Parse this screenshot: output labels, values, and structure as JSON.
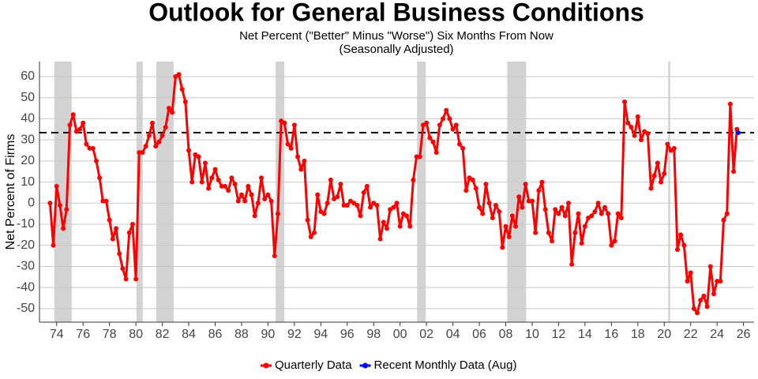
{
  "chart_data": {
    "type": "line",
    "title": "Outlook for General Business Conditions",
    "subtitle": [
      "Net Percent (\"Better\" Minus \"Worse\") Six Months From Now",
      "(Seasonally Adjusted)"
    ],
    "y_label": "Net Percent of Firms",
    "xlim": [
      1972.7,
      2026.8
    ],
    "ylim": [
      -56.4,
      67.1
    ],
    "xticks": [
      {
        "value": 1974,
        "label": "74"
      },
      {
        "value": 1976,
        "label": "76"
      },
      {
        "value": 1978,
        "label": "78"
      },
      {
        "value": 1980,
        "label": "80"
      },
      {
        "value": 1982,
        "label": "82"
      },
      {
        "value": 1984,
        "label": "84"
      },
      {
        "value": 1986,
        "label": "86"
      },
      {
        "value": 1988,
        "label": "88"
      },
      {
        "value": 1990,
        "label": "90"
      },
      {
        "value": 1992,
        "label": "92"
      },
      {
        "value": 1994,
        "label": "94"
      },
      {
        "value": 1996,
        "label": "96"
      },
      {
        "value": 1998,
        "label": "98"
      },
      {
        "value": 2000,
        "label": "00"
      },
      {
        "value": 2002,
        "label": "02"
      },
      {
        "value": 2004,
        "label": "04"
      },
      {
        "value": 2006,
        "label": "06"
      },
      {
        "value": 2008,
        "label": "08"
      },
      {
        "value": 2010,
        "label": "10"
      },
      {
        "value": 2012,
        "label": "12"
      },
      {
        "value": 2014,
        "label": "14"
      },
      {
        "value": 2016,
        "label": "16"
      },
      {
        "value": 2018,
        "label": "18"
      },
      {
        "value": 2020,
        "label": "20"
      },
      {
        "value": 2022,
        "label": "22"
      },
      {
        "value": 2024,
        "label": "24"
      },
      {
        "value": 2026,
        "label": "26"
      }
    ],
    "yticks": [
      -50,
      -40,
      -30,
      -20,
      -10,
      0,
      10,
      20,
      30,
      40,
      50,
      60
    ],
    "grid": true,
    "legend": "bottom",
    "reference_line": 33.4,
    "shaded_periods": [
      [
        1973.82,
        1975.14
      ],
      [
        1980.04,
        1980.52
      ],
      [
        1981.54,
        1982.86
      ],
      [
        1990.58,
        1991.24
      ],
      [
        2001.29,
        2001.95
      ],
      [
        2008.11,
        2009.55
      ],
      [
        2020.3,
        2020.45
      ]
    ],
    "shade_color": "#d3d3d3",
    "series": [
      {
        "name": "Quarterly Data",
        "color": "#ff0000",
        "x": [
          1973.5,
          1973.75,
          1974,
          1974.25,
          1974.5,
          1974.75,
          1975,
          1975.25,
          1975.5,
          1975.75,
          1976,
          1976.25,
          1976.5,
          1976.75,
          1977,
          1977.25,
          1977.5,
          1977.75,
          1978,
          1978.25,
          1978.5,
          1978.75,
          1979,
          1979.25,
          1979.5,
          1979.75,
          1980,
          1980.25,
          1980.5,
          1980.75,
          1981,
          1981.25,
          1981.5,
          1981.75,
          1982,
          1982.25,
          1982.5,
          1982.75,
          1983,
          1983.25,
          1983.5,
          1983.75,
          1984,
          1984.25,
          1984.5,
          1984.75,
          1985,
          1985.25,
          1985.5,
          1985.75,
          1986,
          1986.25,
          1986.5,
          1986.75,
          1987,
          1987.25,
          1987.5,
          1987.75,
          1988,
          1988.25,
          1988.5,
          1988.75,
          1989,
          1989.25,
          1989.5,
          1989.75,
          1990,
          1990.25,
          1990.5,
          1990.75,
          1991,
          1991.25,
          1991.5,
          1991.75,
          1992,
          1992.25,
          1992.5,
          1992.75,
          1993,
          1993.25,
          1993.5,
          1993.75,
          1994,
          1994.25,
          1994.5,
          1994.75,
          1995,
          1995.25,
          1995.5,
          1995.75,
          1996,
          1996.25,
          1996.5,
          1996.75,
          1997,
          1997.25,
          1997.5,
          1997.75,
          1998,
          1998.25,
          1998.5,
          1998.75,
          1999,
          1999.25,
          1999.5,
          1999.75,
          2000,
          2000.25,
          2000.5,
          2000.75,
          2001,
          2001.25,
          2001.5,
          2001.75,
          2002,
          2002.25,
          2002.5,
          2002.75,
          2003,
          2003.25,
          2003.5,
          2003.75,
          2004,
          2004.25,
          2004.5,
          2004.75,
          2005,
          2005.25,
          2005.5,
          2005.75,
          2006,
          2006.25,
          2006.5,
          2006.75,
          2007,
          2007.25,
          2007.5,
          2007.75,
          2008,
          2008.25,
          2008.5,
          2008.75,
          2009,
          2009.25,
          2009.5,
          2009.75,
          2010,
          2010.25,
          2010.5,
          2010.75,
          2011,
          2011.25,
          2011.5,
          2011.75,
          2012,
          2012.25,
          2012.5,
          2012.75,
          2013,
          2013.25,
          2013.5,
          2013.75,
          2014,
          2014.25,
          2014.5,
          2014.75,
          2015,
          2015.25,
          2015.5,
          2015.75,
          2016,
          2016.25,
          2016.5,
          2016.75,
          2017,
          2017.25,
          2017.5,
          2017.75,
          2018,
          2018.25,
          2018.5,
          2018.75,
          2019,
          2019.25,
          2019.5,
          2019.75,
          2020,
          2020.25,
          2020.5,
          2020.75,
          2021,
          2021.25,
          2021.5,
          2021.75,
          2022,
          2022.25,
          2022.5,
          2022.75,
          2023,
          2023.25,
          2023.5,
          2023.75,
          2024,
          2024.25,
          2024.5,
          2024.75,
          2025,
          2025.25,
          2025.5
        ],
        "values": [
          0,
          -20,
          8,
          -1,
          -12,
          -3,
          37,
          42,
          34,
          35,
          38,
          28,
          26,
          26,
          20,
          12,
          1,
          1,
          -8,
          -17,
          -12,
          -24,
          -31,
          -36,
          -14,
          -10,
          -36,
          24,
          24,
          27,
          32,
          38,
          27,
          29,
          32,
          36,
          45,
          43,
          60,
          61,
          54,
          48,
          25,
          10,
          23,
          22,
          10,
          19,
          7,
          12,
          16,
          11,
          8,
          8,
          6,
          12,
          9,
          1,
          4,
          1,
          8,
          4,
          -6,
          0,
          12,
          2,
          4,
          1,
          -25,
          -5,
          39,
          38,
          28,
          26,
          37,
          22,
          16,
          20,
          -8,
          -16,
          -14,
          4,
          -4,
          -5,
          0,
          11,
          2,
          3,
          9,
          -1,
          -1,
          1,
          0,
          -1,
          -6,
          5,
          8,
          -2,
          0,
          -1,
          -17,
          -9,
          -12,
          -3,
          -2,
          0,
          -11,
          -5,
          -6,
          -11,
          11,
          22,
          22,
          37,
          38,
          31,
          29,
          24,
          37,
          40,
          44,
          40,
          35,
          37,
          28,
          26,
          6,
          12,
          11,
          7,
          -2,
          -5,
          9,
          0,
          -7,
          -1,
          -4,
          -21,
          -11,
          -16,
          -6,
          -11,
          3,
          -2,
          9,
          1,
          1,
          -14,
          6,
          10,
          -3,
          -14,
          -18,
          -3,
          -5,
          -2,
          -6,
          0,
          -29,
          -14,
          -5,
          -19,
          -11,
          -7,
          -6,
          -4,
          0,
          -5,
          -2,
          -5,
          -20,
          -18,
          -5,
          -7,
          48,
          38,
          36,
          32,
          41,
          30,
          34,
          33,
          7,
          13,
          19,
          10,
          14,
          28,
          25,
          26,
          -22,
          -15,
          -20,
          -37,
          -33,
          -50,
          -52,
          -46,
          -44,
          -49,
          -30,
          -43,
          -37,
          -37,
          -8,
          -5,
          47,
          15,
          35
        ]
      },
      {
        "name": "Recent Monthly Data (Aug)",
        "color": "#0000ff",
        "x": [
          2025.6
        ],
        "values": [
          33.4
        ]
      }
    ]
  }
}
